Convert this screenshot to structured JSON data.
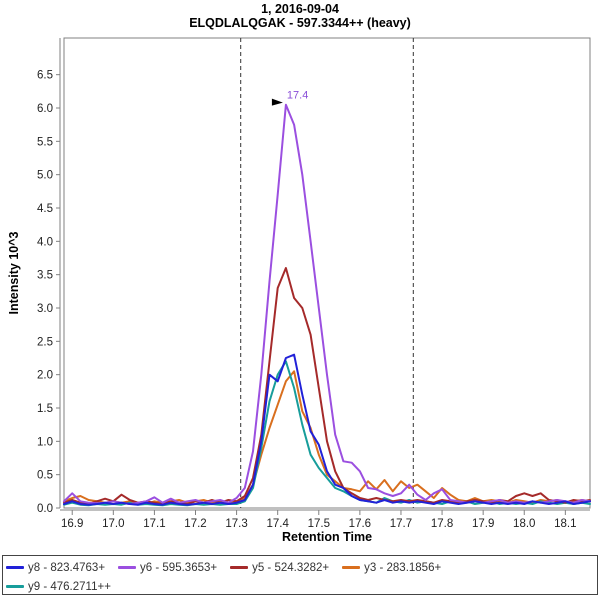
{
  "title": {
    "line1": "1, 2016-09-04",
    "line2": "ELQDLALQGAK - 597.3344++ (heavy)"
  },
  "chart_data": {
    "type": "line",
    "title": "1, 2016-09-04",
    "subtitle": "ELQDLALQGAK - 597.3344++ (heavy)",
    "xlabel": "Retention Time",
    "ylabel": "Intensity 10^3",
    "xlim": [
      16.88,
      18.16
    ],
    "ylim": [
      0,
      7.05
    ],
    "grid": false,
    "legend_position": "bottom",
    "x_ticks": [
      16.9,
      17.0,
      17.1,
      17.2,
      17.3,
      17.4,
      17.5,
      17.6,
      17.7,
      17.8,
      17.9,
      18.0,
      18.1
    ],
    "y_ticks": [
      0.0,
      0.5,
      1.0,
      1.5,
      2.0,
      2.5,
      3.0,
      3.5,
      4.0,
      4.5,
      5.0,
      5.5,
      6.0,
      6.5
    ],
    "integration_boundaries": [
      17.31,
      17.73
    ],
    "peak_annotation": {
      "text": "17.4",
      "x": 17.42,
      "y": 6.05,
      "color": "#8a4fd8"
    },
    "border_color": "#808080",
    "boundary_color": "#333333",
    "tick_text_color": "#222222",
    "draw_order": [
      "y3",
      "y9",
      "y5",
      "y6",
      "y8"
    ],
    "x": [
      16.88,
      16.9,
      16.92,
      16.94,
      16.96,
      16.98,
      17.0,
      17.02,
      17.04,
      17.06,
      17.08,
      17.1,
      17.12,
      17.14,
      17.16,
      17.18,
      17.2,
      17.22,
      17.24,
      17.26,
      17.28,
      17.3,
      17.32,
      17.34,
      17.36,
      17.38,
      17.4,
      17.42,
      17.44,
      17.46,
      17.48,
      17.5,
      17.52,
      17.54,
      17.56,
      17.58,
      17.6,
      17.62,
      17.64,
      17.66,
      17.68,
      17.7,
      17.72,
      17.74,
      17.76,
      17.78,
      17.8,
      17.82,
      17.84,
      17.86,
      17.88,
      17.9,
      17.92,
      17.94,
      17.96,
      17.98,
      18.0,
      18.02,
      18.04,
      18.06,
      18.08,
      18.1,
      18.12,
      18.14,
      18.16
    ],
    "series": [
      {
        "key": "y8",
        "name": "y8 - 823.4763+",
        "color": "#2121d8",
        "legend_row": 1,
        "values": [
          0.06,
          0.1,
          0.06,
          0.05,
          0.06,
          0.08,
          0.06,
          0.08,
          0.06,
          0.05,
          0.08,
          0.06,
          0.05,
          0.08,
          0.06,
          0.05,
          0.06,
          0.08,
          0.06,
          0.08,
          0.06,
          0.08,
          0.12,
          0.35,
          1.0,
          2.0,
          1.9,
          2.25,
          2.3,
          1.7,
          1.15,
          0.95,
          0.55,
          0.35,
          0.3,
          0.18,
          0.12,
          0.1,
          0.08,
          0.12,
          0.08,
          0.1,
          0.08,
          0.1,
          0.08,
          0.06,
          0.1,
          0.08,
          0.06,
          0.08,
          0.1,
          0.08,
          0.06,
          0.08,
          0.06,
          0.08,
          0.06,
          0.1,
          0.08,
          0.06,
          0.08,
          0.1,
          0.06,
          0.08,
          0.1
        ]
      },
      {
        "key": "y6",
        "name": "y6 - 595.3653+",
        "color": "#9b4fe0",
        "legend_row": 1,
        "values": [
          0.1,
          0.22,
          0.1,
          0.08,
          0.07,
          0.08,
          0.1,
          0.08,
          0.06,
          0.08,
          0.1,
          0.16,
          0.08,
          0.14,
          0.08,
          0.1,
          0.12,
          0.08,
          0.1,
          0.12,
          0.08,
          0.15,
          0.3,
          0.85,
          2.0,
          3.4,
          4.7,
          6.05,
          5.75,
          5.0,
          4.0,
          3.0,
          2.0,
          1.1,
          0.7,
          0.68,
          0.55,
          0.3,
          0.28,
          0.22,
          0.18,
          0.22,
          0.35,
          0.2,
          0.12,
          0.22,
          0.28,
          0.12,
          0.1,
          0.08,
          0.1,
          0.08,
          0.1,
          0.12,
          0.08,
          0.1,
          0.08,
          0.1,
          0.08,
          0.1,
          0.12,
          0.1,
          0.08,
          0.12,
          0.1
        ]
      },
      {
        "key": "y5",
        "name": "y5 - 524.3282+",
        "color": "#a52a2a",
        "legend_row": 1,
        "values": [
          0.08,
          0.12,
          0.08,
          0.06,
          0.1,
          0.14,
          0.1,
          0.2,
          0.12,
          0.08,
          0.1,
          0.08,
          0.06,
          0.1,
          0.08,
          0.06,
          0.1,
          0.08,
          0.12,
          0.08,
          0.12,
          0.1,
          0.18,
          0.45,
          1.1,
          2.2,
          3.3,
          3.6,
          3.15,
          3.0,
          2.6,
          1.8,
          1.0,
          0.55,
          0.3,
          0.22,
          0.15,
          0.12,
          0.15,
          0.12,
          0.1,
          0.12,
          0.1,
          0.12,
          0.1,
          0.08,
          0.12,
          0.1,
          0.08,
          0.1,
          0.12,
          0.1,
          0.08,
          0.12,
          0.1,
          0.18,
          0.22,
          0.18,
          0.22,
          0.12,
          0.1,
          0.08,
          0.12,
          0.1,
          0.12
        ]
      },
      {
        "key": "y3",
        "name": "y3 - 283.1856+",
        "color": "#d96f1e",
        "legend_row": 1,
        "values": [
          0.1,
          0.15,
          0.18,
          0.12,
          0.1,
          0.08,
          0.1,
          0.08,
          0.1,
          0.08,
          0.06,
          0.1,
          0.08,
          0.1,
          0.12,
          0.08,
          0.1,
          0.12,
          0.08,
          0.1,
          0.08,
          0.1,
          0.15,
          0.35,
          0.8,
          1.2,
          1.55,
          1.9,
          2.05,
          1.45,
          1.2,
          0.8,
          0.5,
          0.4,
          0.3,
          0.28,
          0.25,
          0.4,
          0.28,
          0.42,
          0.25,
          0.4,
          0.3,
          0.35,
          0.25,
          0.15,
          0.3,
          0.2,
          0.12,
          0.1,
          0.15,
          0.1,
          0.12,
          0.1,
          0.08,
          0.12,
          0.1,
          0.08,
          0.12,
          0.1,
          0.12,
          0.08,
          0.1,
          0.12,
          0.1
        ]
      },
      {
        "key": "y9",
        "name": "y9 - 476.2711++",
        "color": "#179d9b",
        "legend_row": 2,
        "values": [
          0.05,
          0.08,
          0.05,
          0.04,
          0.06,
          0.05,
          0.06,
          0.05,
          0.08,
          0.05,
          0.06,
          0.05,
          0.04,
          0.06,
          0.05,
          0.04,
          0.06,
          0.05,
          0.06,
          0.05,
          0.06,
          0.06,
          0.1,
          0.3,
          0.9,
          1.6,
          2.0,
          2.2,
          1.8,
          1.25,
          0.8,
          0.6,
          0.45,
          0.3,
          0.25,
          0.18,
          0.12,
          0.1,
          0.08,
          0.15,
          0.1,
          0.08,
          0.12,
          0.08,
          0.1,
          0.08,
          0.06,
          0.1,
          0.08,
          0.1,
          0.06,
          0.08,
          0.1,
          0.06,
          0.08,
          0.06,
          0.08,
          0.06,
          0.1,
          0.08,
          0.06,
          0.08,
          0.06,
          0.08,
          0.06
        ]
      }
    ]
  }
}
